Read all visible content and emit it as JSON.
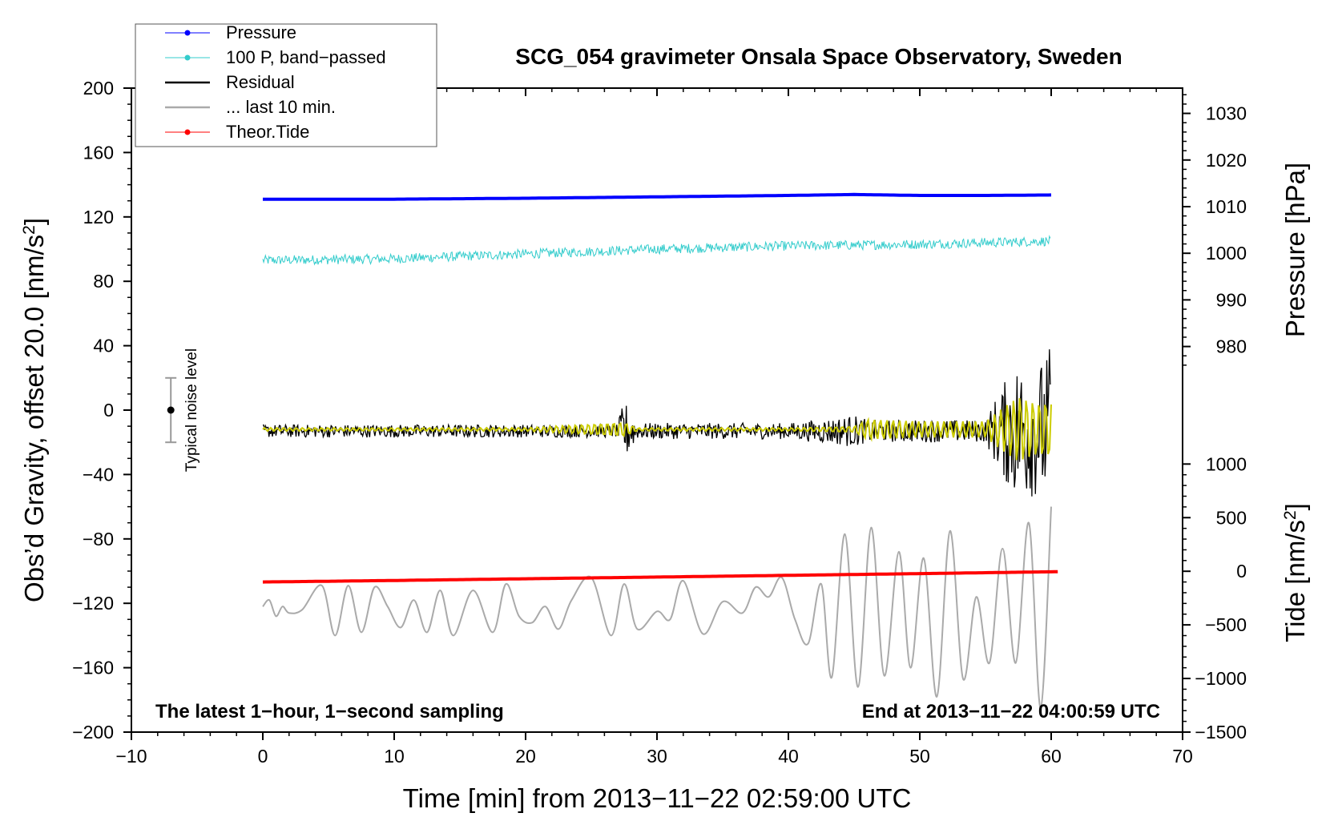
{
  "chart_data": {
    "type": "line",
    "title": "SCG_054 gravimeter Onsala Space Observatory, Sweden",
    "xlabel": "Time [min] from 2013−11−22 02:59:00 UTC",
    "ylabel_left": "Obs’d Gravity, offset 20.0 [nm/s",
    "ylabel_left_sup": "2",
    "ylabel_left_close": "]",
    "ylabel_right_pressure": "Pressure [hPa]",
    "ylabel_right_tide": "Tide [nm/s",
    "ylabel_right_tide_sup": "2",
    "ylabel_right_tide_close": "]",
    "xlim": [
      -10,
      70
    ],
    "ylim_left": [
      -200,
      200
    ],
    "x_ticks": [
      "−10",
      "0",
      "10",
      "20",
      "30",
      "40",
      "50",
      "60",
      "70"
    ],
    "x_tick_values": [
      -10,
      0,
      10,
      20,
      30,
      40,
      50,
      60,
      70
    ],
    "y_ticks_left": [
      "200",
      "160",
      "120",
      "80",
      "40",
      "0",
      "−40",
      "−80",
      "−120",
      "−160",
      "−200"
    ],
    "y_tick_values_left": [
      200,
      160,
      120,
      80,
      40,
      0,
      -40,
      -80,
      -120,
      -160,
      -200
    ],
    "pressure_axis": {
      "ticks": [
        "1030",
        "1020",
        "1010",
        "1000",
        "990",
        "980"
      ],
      "tick_values": [
        1030,
        1020,
        1010,
        1000,
        990,
        980
      ],
      "gravity_equivalent": {
        "hpa_a": 1030,
        "g_a": 184.3,
        "hpa_b": 980,
        "g_b": 39.5
      }
    },
    "tide_axis": {
      "ticks": [
        "1000",
        "500",
        "0",
        "−500",
        "−1000",
        "−1500"
      ],
      "tick_values": [
        1000,
        500,
        0,
        -500,
        -1000,
        -1500
      ],
      "gravity_equivalent": {
        "tide_a": 1000,
        "g_a": -33.5,
        "tide_b": -1500,
        "g_b": -200
      }
    },
    "noise_bar": {
      "label": "Typical noise level",
      "x": -7,
      "y": 0,
      "half_range": 20
    },
    "note_left": "The latest 1−hour, 1−second sampling",
    "note_right": "End at 2013−11−22 04:00:59 UTC",
    "series": [
      {
        "name": "Pressure",
        "color": "#0000ff",
        "style": "thick-line",
        "axis": "pressure",
        "x": [
          0,
          10,
          20,
          30,
          40,
          45,
          50,
          55,
          60
        ],
        "y": [
          1011.6,
          1011.6,
          1011.8,
          1012.1,
          1012.4,
          1012.6,
          1012.4,
          1012.4,
          1012.5
        ]
      },
      {
        "name": "100 P, band−passed",
        "color": "#33cccc",
        "style": "noisy-line",
        "axis": "gravity",
        "x": [
          0,
          10,
          20,
          30,
          40,
          50,
          60
        ],
        "y": [
          93,
          94,
          97,
          100,
          102,
          103,
          105
        ],
        "noise_amp": 3
      },
      {
        "name": "Residual",
        "color": "#000000",
        "style": "noisy-line",
        "axis": "gravity",
        "x": [
          0,
          10,
          20,
          27.5,
          28,
          30,
          40,
          45,
          50,
          55,
          57,
          58,
          59,
          60
        ],
        "y": [
          -13,
          -13,
          -13,
          -13,
          -13,
          -13,
          -13,
          -13,
          -13,
          -13,
          -13,
          -13,
          -13,
          -13
        ],
        "noise_amp_x": [
          0,
          27,
          27.5,
          28.5,
          40,
          45,
          46,
          55,
          56,
          57.5,
          59,
          60
        ],
        "noise_amp": [
          4,
          4,
          20,
          5,
          5,
          10,
          7,
          7,
          25,
          45,
          40,
          55
        ]
      },
      {
        "name": "... last 10 min.",
        "color": "#aaaaaa",
        "style": "line",
        "axis": "gravity",
        "x": [
          0,
          0.5,
          1,
          1.5,
          2,
          3,
          4.5,
          5.5,
          6.5,
          7.5,
          8.5,
          9.5,
          10.5,
          11.5,
          12.5,
          13.5,
          14.5,
          16,
          17.5,
          18.5,
          19.5,
          20.5,
          21.5,
          22.5,
          23.5,
          25,
          26.5,
          27.5,
          28.5,
          30,
          31,
          32,
          33.5,
          35,
          36.5,
          37.5,
          38.5,
          39.5,
          40.5,
          41.5,
          42.5,
          43.3,
          44.3,
          45.3,
          46.3,
          47.3,
          48.4,
          49.3,
          50.3,
          51.3,
          52.3,
          53.3,
          54.3,
          55.3,
          56.3,
          57.3,
          58.3,
          59.2,
          60
        ],
        "y": [
          -122,
          -118,
          -128,
          -122,
          -126,
          -124,
          -109,
          -140,
          -109,
          -138,
          -110,
          -122,
          -135,
          -118,
          -138,
          -112,
          -140,
          -112,
          -138,
          -108,
          -128,
          -132,
          -122,
          -136,
          -118,
          -104,
          -140,
          -108,
          -136,
          -125,
          -130,
          -106,
          -139,
          -119,
          -126,
          -110,
          -116,
          -104,
          -130,
          -145,
          -108,
          -166,
          -77,
          -172,
          -73,
          -165,
          -88,
          -160,
          -92,
          -178,
          -75,
          -167,
          -116,
          -157,
          -86,
          -157,
          -70,
          -185,
          -60
        ]
      },
      {
        "name": "Theor.Tide",
        "color": "#ff0000",
        "style": "thick-line",
        "axis": "tide",
        "x": [
          0,
          10,
          20,
          30,
          40,
          50,
          60.5
        ],
        "y": [
          -100,
          -86,
          -70,
          -54,
          -38,
          -22,
          -4
        ]
      }
    ],
    "smoothed_residual": {
      "color": "#cccc00",
      "description_only_visual": true,
      "x": [
        0,
        10,
        20,
        27.5,
        28.5,
        40,
        45,
        46,
        50,
        55,
        56,
        57.5,
        59,
        60
      ],
      "amp": [
        1,
        1,
        1,
        5,
        1,
        1,
        2,
        7,
        5,
        5,
        12,
        22,
        18,
        20
      ]
    },
    "legend_placement": "top-left",
    "grid": false
  }
}
